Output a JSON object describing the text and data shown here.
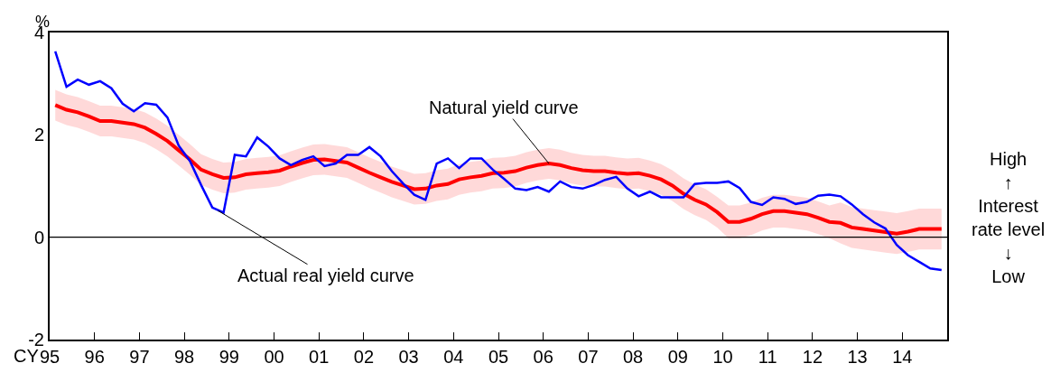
{
  "chart_data": {
    "type": "line",
    "ylabel": "%",
    "xlabel": "CY",
    "x": [
      1995.125,
      1995.375,
      1995.625,
      1995.875,
      1996.125,
      1996.375,
      1996.625,
      1996.875,
      1997.125,
      1997.375,
      1997.625,
      1997.875,
      1998.125,
      1998.375,
      1998.625,
      1998.875,
      1999.125,
      1999.375,
      1999.625,
      1999.875,
      2000.125,
      2000.375,
      2000.625,
      2000.875,
      2001.125,
      2001.375,
      2001.625,
      2001.875,
      2002.125,
      2002.375,
      2002.625,
      2002.875,
      2003.125,
      2003.375,
      2003.625,
      2003.875,
      2004.125,
      2004.375,
      2004.625,
      2004.875,
      2005.125,
      2005.375,
      2005.625,
      2005.875,
      2006.125,
      2006.375,
      2006.625,
      2006.875,
      2007.125,
      2007.375,
      2007.625,
      2007.875,
      2008.125,
      2008.375,
      2008.625,
      2008.875,
      2009.125,
      2009.375,
      2009.625,
      2009.875,
      2010.125,
      2010.375,
      2010.625,
      2010.875,
      2011.125,
      2011.375,
      2011.625,
      2011.875,
      2012.125,
      2012.375,
      2012.625,
      2012.875,
      2013.125,
      2013.375,
      2013.625,
      2013.875,
      2014.125,
      2014.375,
      2014.625,
      2014.875
    ],
    "series": [
      {
        "color": "#ff0000",
        "values": [
          2.58,
          2.49,
          2.44,
          2.36,
          2.27,
          2.27,
          2.24,
          2.21,
          2.14,
          2.02,
          1.88,
          1.7,
          1.52,
          1.32,
          1.23,
          1.16,
          1.17,
          1.23,
          1.25,
          1.27,
          1.3,
          1.38,
          1.45,
          1.51,
          1.52,
          1.49,
          1.46,
          1.36,
          1.26,
          1.17,
          1.08,
          1.01,
          0.94,
          0.95,
          1.01,
          1.04,
          1.13,
          1.17,
          1.2,
          1.25,
          1.26,
          1.29,
          1.36,
          1.41,
          1.44,
          1.41,
          1.35,
          1.31,
          1.29,
          1.29,
          1.26,
          1.24,
          1.25,
          1.2,
          1.13,
          1.01,
          0.85,
          0.73,
          0.64,
          0.49,
          0.3,
          0.3,
          0.36,
          0.45,
          0.51,
          0.51,
          0.48,
          0.45,
          0.38,
          0.3,
          0.28,
          0.19,
          0.16,
          0.13,
          0.1,
          0.07,
          0.11,
          0.16,
          0.16,
          0.16
        ],
        "upper": [
          2.88,
          2.79,
          2.74,
          2.66,
          2.57,
          2.57,
          2.54,
          2.51,
          2.44,
          2.32,
          2.18,
          2.0,
          1.82,
          1.62,
          1.53,
          1.46,
          1.47,
          1.53,
          1.55,
          1.57,
          1.6,
          1.68,
          1.75,
          1.81,
          1.82,
          1.79,
          1.76,
          1.66,
          1.56,
          1.47,
          1.38,
          1.31,
          1.24,
          1.25,
          1.31,
          1.34,
          1.43,
          1.47,
          1.5,
          1.55,
          1.56,
          1.59,
          1.66,
          1.71,
          1.74,
          1.71,
          1.65,
          1.61,
          1.59,
          1.59,
          1.56,
          1.54,
          1.55,
          1.5,
          1.43,
          1.31,
          1.15,
          1.03,
          0.94,
          0.79,
          0.62,
          0.62,
          0.68,
          0.77,
          0.83,
          0.83,
          0.8,
          0.77,
          0.7,
          0.62,
          0.68,
          0.59,
          0.56,
          0.53,
          0.5,
          0.47,
          0.51,
          0.56,
          0.56,
          0.56
        ],
        "lower": [
          2.28,
          2.19,
          2.14,
          2.06,
          1.97,
          1.97,
          1.94,
          1.91,
          1.84,
          1.72,
          1.58,
          1.4,
          1.22,
          1.02,
          0.93,
          0.86,
          0.87,
          0.93,
          0.95,
          0.97,
          1.0,
          1.08,
          1.15,
          1.21,
          1.22,
          1.19,
          1.16,
          1.06,
          0.96,
          0.87,
          0.78,
          0.71,
          0.64,
          0.65,
          0.71,
          0.74,
          0.83,
          0.87,
          0.9,
          0.95,
          0.96,
          0.99,
          1.06,
          1.11,
          1.14,
          1.11,
          1.05,
          1.01,
          0.99,
          0.99,
          0.96,
          0.94,
          0.95,
          0.9,
          0.83,
          0.71,
          0.55,
          0.43,
          0.34,
          0.19,
          -0.02,
          -0.02,
          0.04,
          0.13,
          0.19,
          0.19,
          0.16,
          0.13,
          0.06,
          -0.02,
          -0.12,
          -0.21,
          -0.24,
          -0.27,
          -0.3,
          -0.33,
          -0.29,
          -0.24,
          -0.24,
          -0.24
        ]
      },
      {
        "color": "#0000ff",
        "values": [
          3.63,
          2.94,
          3.08,
          2.98,
          3.05,
          2.91,
          2.61,
          2.46,
          2.62,
          2.59,
          2.34,
          1.79,
          1.49,
          1.02,
          0.58,
          0.48,
          1.61,
          1.58,
          1.95,
          1.77,
          1.54,
          1.41,
          1.51,
          1.58,
          1.39,
          1.44,
          1.61,
          1.61,
          1.76,
          1.58,
          1.29,
          1.05,
          0.83,
          0.73,
          1.44,
          1.54,
          1.35,
          1.54,
          1.54,
          1.32,
          1.14,
          0.95,
          0.92,
          0.98,
          0.89,
          1.09,
          0.98,
          0.95,
          1.02,
          1.12,
          1.18,
          0.95,
          0.8,
          0.89,
          0.78,
          0.78,
          0.78,
          1.04,
          1.06,
          1.06,
          1.09,
          0.96,
          0.69,
          0.63,
          0.78,
          0.75,
          0.65,
          0.69,
          0.81,
          0.83,
          0.8,
          0.64,
          0.45,
          0.29,
          0.17,
          -0.15,
          -0.35,
          -0.48,
          -0.61,
          -0.64
        ]
      }
    ],
    "annotations": [
      {
        "text": "Natural yield curve",
        "x": 2006.125,
        "y": 1.44
      },
      {
        "text": "Actual real yield curve",
        "x": 1998.75,
        "y": 0.52
      },
      "High\n↑\nInterest\nrate level\n↓\nLow"
    ],
    "ref_lines": [
      {
        "axis": "y",
        "value": 0,
        "color": "#000000"
      }
    ],
    "xlim": [
      1995,
      2015
    ],
    "xticks": [
      {
        "value": 1995,
        "label": "95"
      },
      {
        "value": 1996,
        "label": "96"
      },
      {
        "value": 1997,
        "label": "97"
      },
      {
        "value": 1998,
        "label": "98"
      },
      {
        "value": 1999,
        "label": "99"
      },
      {
        "value": 2000,
        "label": "00"
      },
      {
        "value": 2001,
        "label": "01"
      },
      {
        "value": 2002,
        "label": "02"
      },
      {
        "value": 2003,
        "label": "03"
      },
      {
        "value": 2004,
        "label": "04"
      },
      {
        "value": 2005,
        "label": "05"
      },
      {
        "value": 2006,
        "label": "06"
      },
      {
        "value": 2007,
        "label": "07"
      },
      {
        "value": 2008,
        "label": "08"
      },
      {
        "value": 2009,
        "label": "09"
      },
      {
        "value": 2010,
        "label": "10"
      },
      {
        "value": 2011,
        "label": "11"
      },
      {
        "value": 2012,
        "label": "12"
      },
      {
        "value": 2013,
        "label": "13"
      },
      {
        "value": 2014,
        "label": "14"
      },
      {
        "value": 2015,
        "label": null
      }
    ],
    "ylim": [
      -2,
      4
    ],
    "yticks": [
      -2,
      0,
      2,
      4
    ],
    "marker": "none",
    "line_style": "solid"
  }
}
